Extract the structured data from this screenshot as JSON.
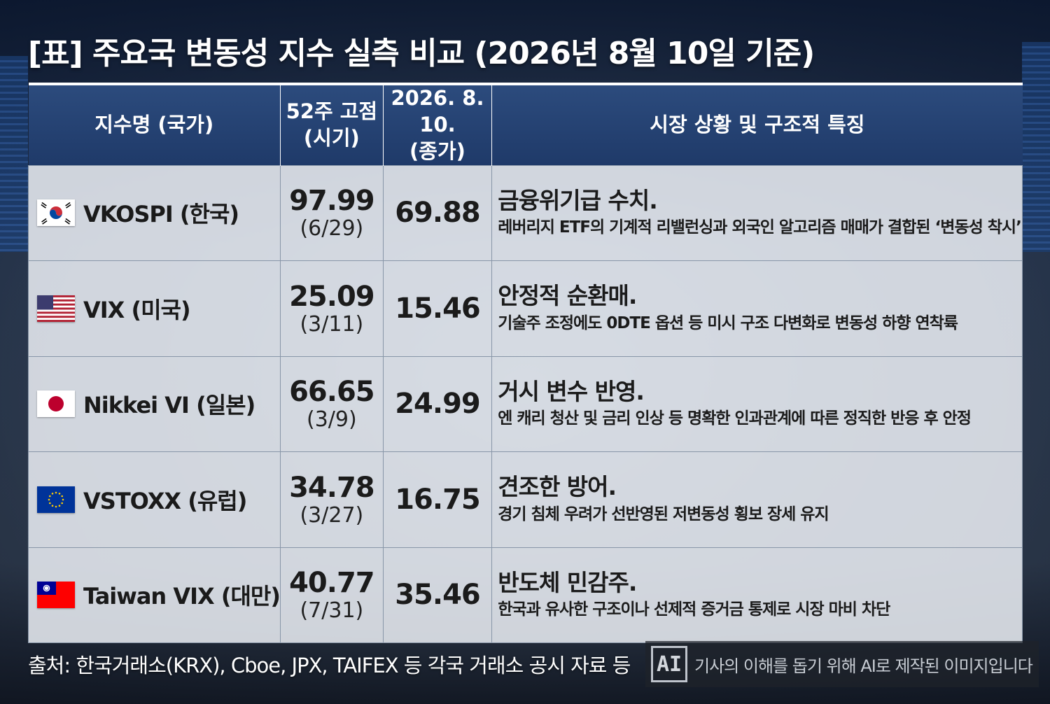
{
  "title": "[표] 주요국 변동성 지수 실측 비교 (2026년 8월 10일 기준)",
  "table": {
    "headers": {
      "col1": "지수명 (국가)",
      "col2_line1": "52주 고점",
      "col2_line2": "(시기)",
      "col3_line1": "2026. 8. 10.",
      "col3_line2": "(종가)",
      "col4": "시장 상황 및 구조적 특징"
    },
    "rows": [
      {
        "flag": "south-korea-flag",
        "name": "VKOSPI (한국)",
        "high": "97.99",
        "high_date": "(6/29)",
        "close": "69.88",
        "headline": "금융위기급 수치.",
        "detail": "레버리지 ETF의 기계적 리밸런싱과 외국인 알고리즘 매매가 결합된 ‘변동성 착시’"
      },
      {
        "flag": "united-states-flag",
        "name": "VIX (미국)",
        "high": "25.09",
        "high_date": "(3/11)",
        "close": "15.46",
        "headline": "안정적 순환매.",
        "detail": "기술주 조정에도 0DTE 옵션 등 미시 구조 다변화로 변동성 하향 연착륙"
      },
      {
        "flag": "japan-flag",
        "name": "Nikkei VI (일본)",
        "high": "66.65",
        "high_date": "(3/9)",
        "close": "24.99",
        "headline": "거시 변수 반영.",
        "detail": "엔 캐리 청산 및 금리 인상 등 명확한 인과관계에 따른 정직한 반응 후 안정"
      },
      {
        "flag": "european-union-flag",
        "name": "VSTOXX (유럽)",
        "high": "34.78",
        "high_date": "(3/27)",
        "close": "16.75",
        "headline": "견조한 방어.",
        "detail": "경기 침체 우려가 선반영된 저변동성 횡보 장세 유지"
      },
      {
        "flag": "taiwan-flag",
        "name": "Taiwan VIX (대만)",
        "high": "40.77",
        "high_date": "(7/31)",
        "close": "35.46",
        "headline": "반도체 민감주.",
        "detail": "한국과 유사한 구조이나 선제적 증거금 통제로 시장 마비 차단"
      }
    ]
  },
  "source": "출처: 한국거래소(KRX), Cboe, JPX, TAIFEX 등 각국 거래소 공시 자료 등",
  "ai_notice": {
    "icon": "ai-icon",
    "icon_text": "AI",
    "text": "기사의 이해를 돕기 위해 AI로 제작된 이미지입니다"
  },
  "colors": {
    "header_bg": "#1f3a69",
    "cell_bg": "#ecf0f6",
    "title_text": "#ffffff"
  }
}
